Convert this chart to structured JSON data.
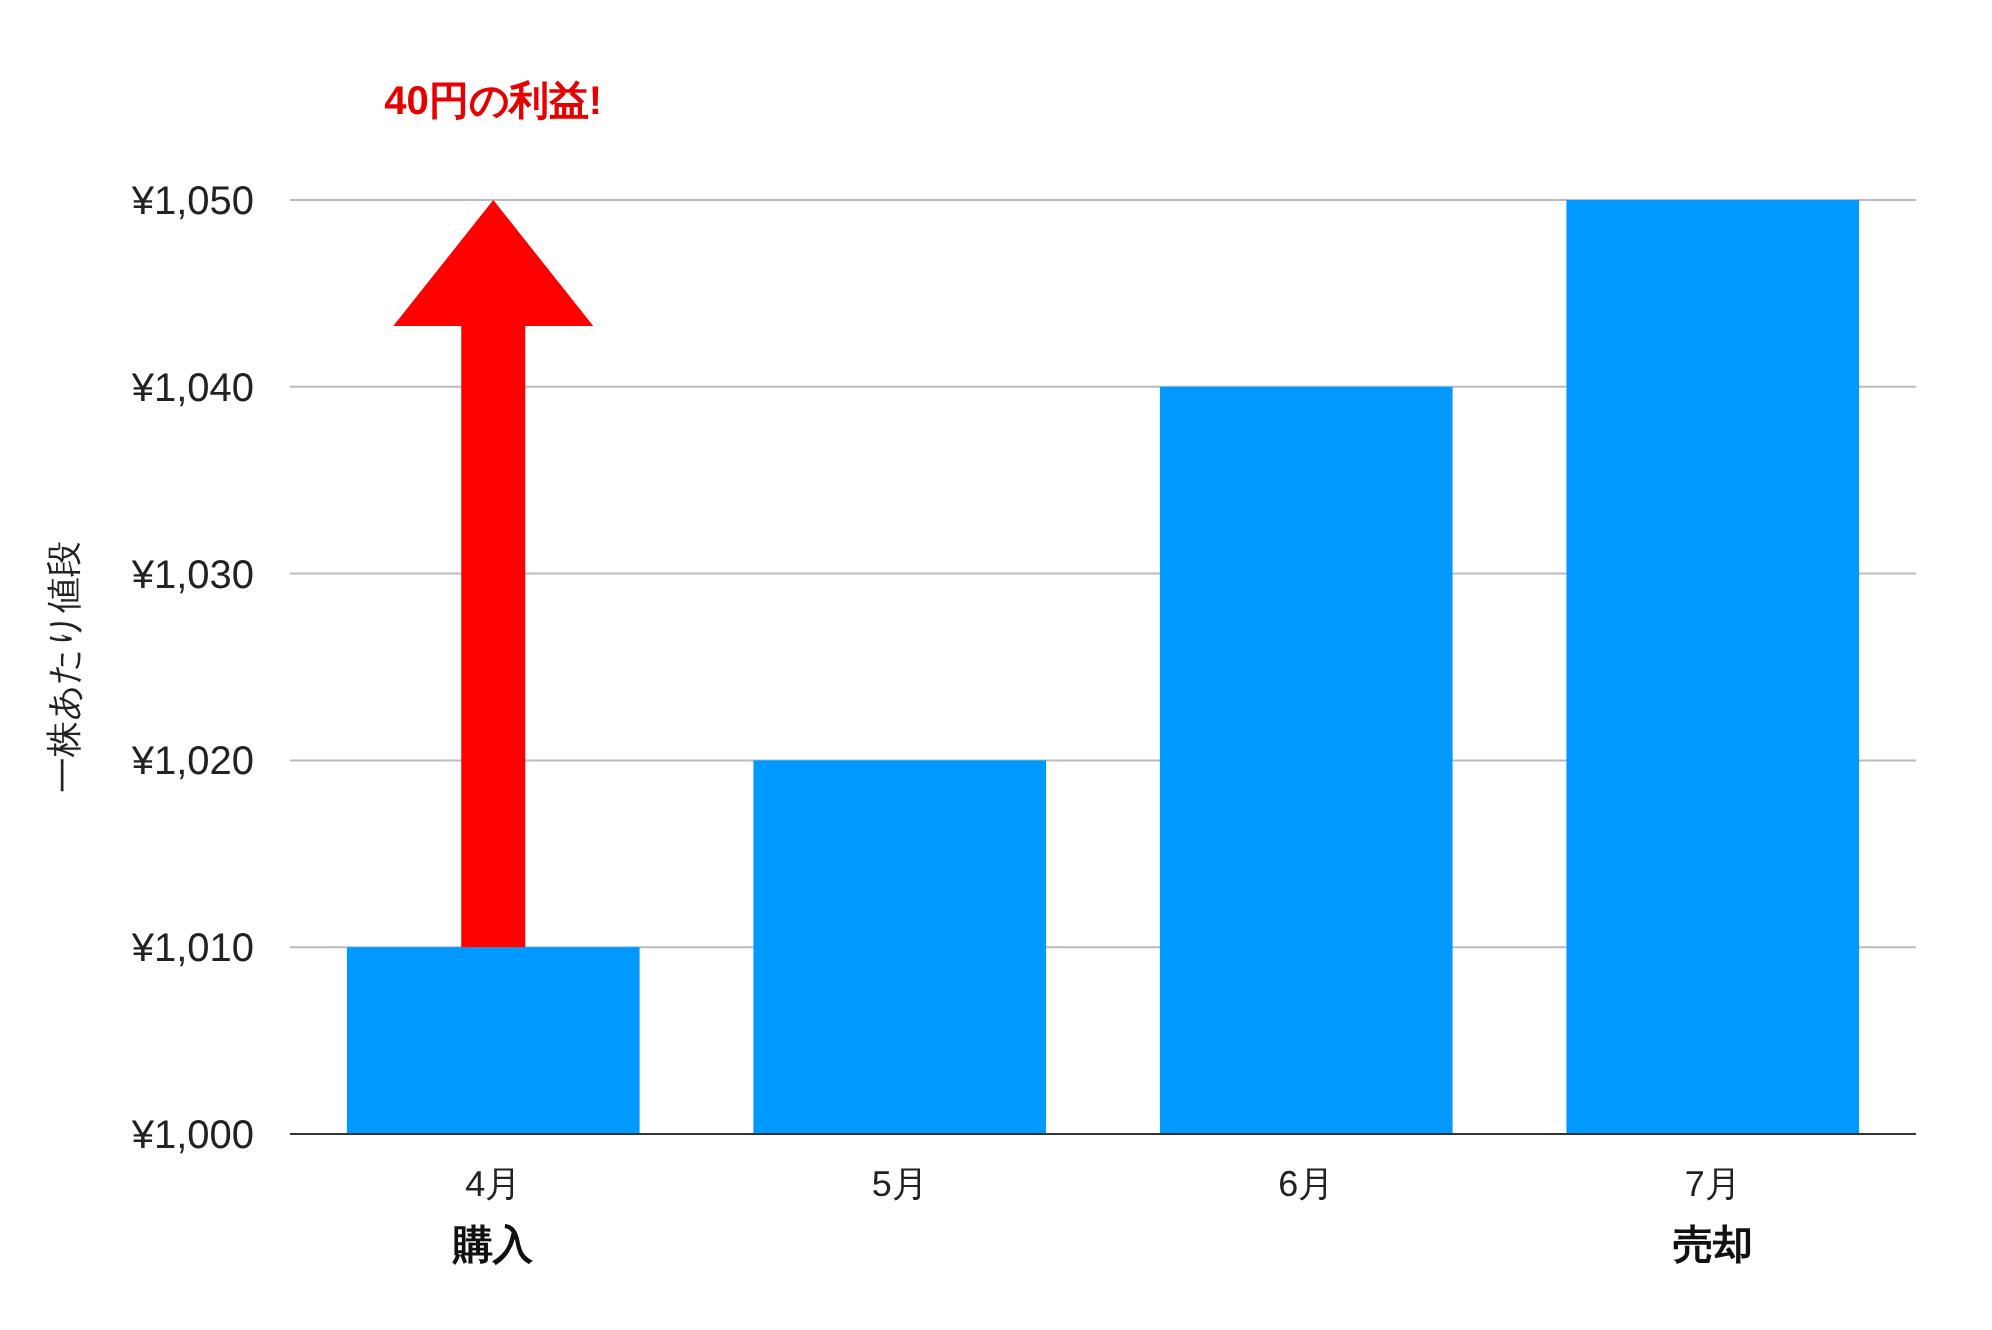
{
  "chart_data": {
    "type": "bar",
    "ylabel": "一株あたり値段",
    "categories": [
      "4月",
      "5月",
      "6月",
      "7月"
    ],
    "values": [
      1010,
      1020,
      1040,
      1050
    ],
    "color": "#0099ff",
    "ylim": [
      1000,
      1050
    ],
    "yticks": [
      {
        "value": 1000,
        "label": "¥1,000"
      },
      {
        "value": 1010,
        "label": "¥1,010"
      },
      {
        "value": 1020,
        "label": "¥1,020"
      },
      {
        "value": 1030,
        "label": "¥1,030"
      },
      {
        "value": 1040,
        "label": "¥1,040"
      },
      {
        "value": 1050,
        "label": "¥1,050"
      }
    ],
    "grid": "y",
    "annotations": [
      "40円の利益!",
      "購入",
      "売却"
    ]
  }
}
